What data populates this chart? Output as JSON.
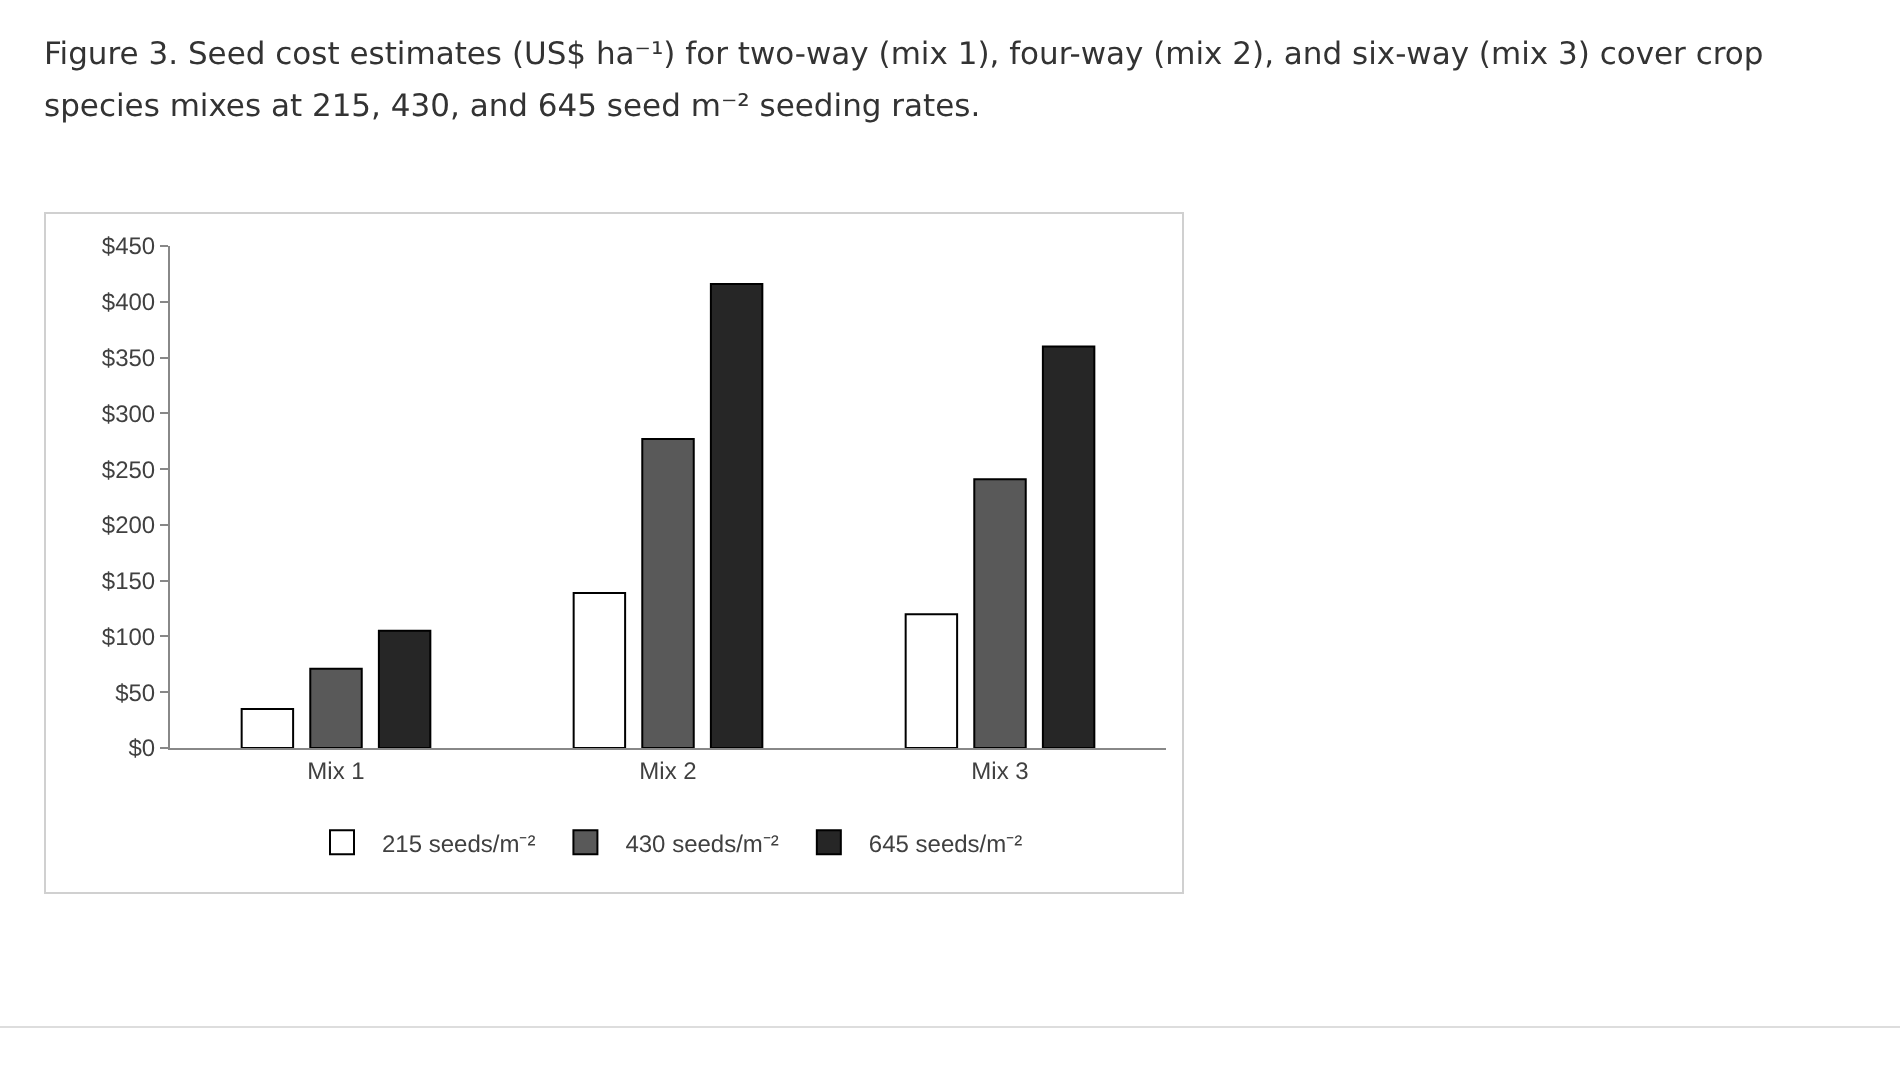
{
  "chart_data": {
    "type": "bar",
    "title": "Figure 3. Seed cost estimates (US$ ha⁻¹) for two-way (mix 1), four-way (mix 2), and six-way (mix 3) cover crop species mixes at 215, 430, and 645 seed m⁻² seeding rates.",
    "categories": [
      "Mix 1",
      "Mix 2",
      "Mix 3"
    ],
    "series": [
      {
        "name": "215 seeds/m⁻²",
        "color": "#ffffff",
        "values": [
          35,
          139,
          120
        ]
      },
      {
        "name": "430 seeds/m⁻²",
        "color": "#595959",
        "values": [
          71,
          277,
          241
        ]
      },
      {
        "name": "645 seeds/m⁻²",
        "color": "#262626",
        "values": [
          105,
          416,
          360
        ]
      }
    ],
    "ylim": [
      0,
      450
    ],
    "yticks": [
      {
        "value": 0,
        "label": "$0"
      },
      {
        "value": 50,
        "label": "$50"
      },
      {
        "value": 100,
        "label": "$100"
      },
      {
        "value": 150,
        "label": "$150"
      },
      {
        "value": 200,
        "label": "$200"
      },
      {
        "value": 250,
        "label": "$250"
      },
      {
        "value": 300,
        "label": "$300"
      },
      {
        "value": 350,
        "label": "$350"
      },
      {
        "value": 400,
        "label": "$400"
      },
      {
        "value": 450,
        "label": "$450"
      }
    ],
    "grid": false,
    "legend": "bottom"
  }
}
